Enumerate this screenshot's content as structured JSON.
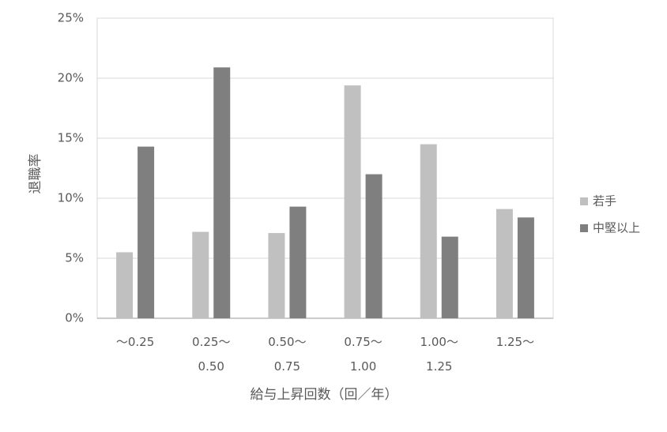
{
  "chart_data": {
    "type": "bar",
    "x_label": "給与上昇回数（回／年）",
    "y_label": "退職率",
    "categories": [
      "～0.25",
      "0.25～\n0.50",
      "0.50～\n0.75",
      "0.75～\n1.00",
      "1.00～\n1.25",
      "1.25～"
    ],
    "series": [
      {
        "name": "若手",
        "color": "#c0c0c0",
        "values": [
          5.5,
          7.2,
          7.1,
          19.4,
          14.5,
          9.1
        ]
      },
      {
        "name": "中堅以上",
        "color": "#7f7f7f",
        "values": [
          14.3,
          20.9,
          9.3,
          12.0,
          6.8,
          8.4
        ]
      }
    ],
    "ylim": [
      0,
      25
    ],
    "yticks": [
      {
        "value": 0,
        "label": "0%"
      },
      {
        "value": 5,
        "label": "5%"
      },
      {
        "value": 10,
        "label": "10%"
      },
      {
        "value": 15,
        "label": "15%"
      },
      {
        "value": 20,
        "label": "20%"
      },
      {
        "value": 25,
        "label": "25%"
      }
    ],
    "grid": true,
    "legend": "right"
  }
}
